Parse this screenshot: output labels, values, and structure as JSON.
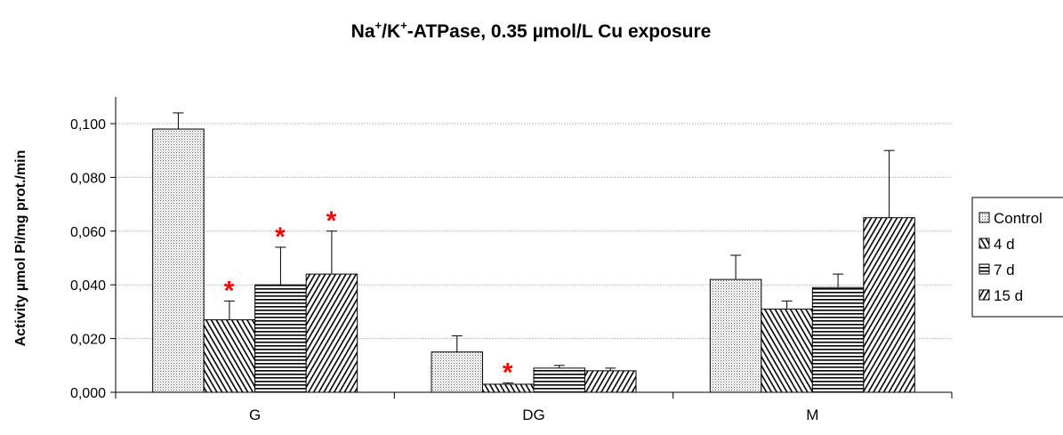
{
  "colors": {
    "star": "#ff0000",
    "grid": "#b0b0b0",
    "axis": "#000000"
  },
  "chart_data": {
    "type": "bar",
    "title": {
      "prefix": "Na",
      "sup1": "+",
      "middle": "/K",
      "sup2": "+",
      "suffix": "-ATPase, 0.35 µmol/L Cu exposure"
    },
    "ylabel": "Activity µmol Pi/mg prot./min",
    "xlabel": "",
    "ylim": [
      0,
      0.1
    ],
    "yticks": [
      0.0,
      0.02,
      0.04,
      0.06,
      0.08,
      0.1
    ],
    "ytick_labels": [
      "0,000",
      "0,020",
      "0,040",
      "0,060",
      "0,080",
      "0,100"
    ],
    "grid": true,
    "legend_position": "right",
    "categories": [
      "G",
      "DG",
      "M"
    ],
    "series": [
      {
        "name": "Control",
        "pattern": "dots",
        "values": [
          0.098,
          0.015,
          0.042
        ],
        "errors": [
          0.006,
          0.006,
          0.009
        ]
      },
      {
        "name": "4 d",
        "pattern": "backslash",
        "values": [
          0.027,
          0.003,
          0.031
        ],
        "errors": [
          0.007,
          0.0005,
          0.003
        ]
      },
      {
        "name": "7 d",
        "pattern": "horizontal",
        "values": [
          0.04,
          0.009,
          0.039
        ],
        "errors": [
          0.014,
          0.001,
          0.005
        ]
      },
      {
        "name": "15 d",
        "pattern": "slash",
        "values": [
          0.044,
          0.008,
          0.065
        ],
        "errors": [
          0.016,
          0.001,
          0.025
        ]
      }
    ],
    "significance_markers": [
      {
        "symbol": "*",
        "category": "G",
        "series": "4 d"
      },
      {
        "symbol": "*",
        "category": "G",
        "series": "7 d"
      },
      {
        "symbol": "*",
        "category": "G",
        "series": "15 d"
      },
      {
        "symbol": "*",
        "category": "DG",
        "series": "4 d"
      }
    ]
  }
}
